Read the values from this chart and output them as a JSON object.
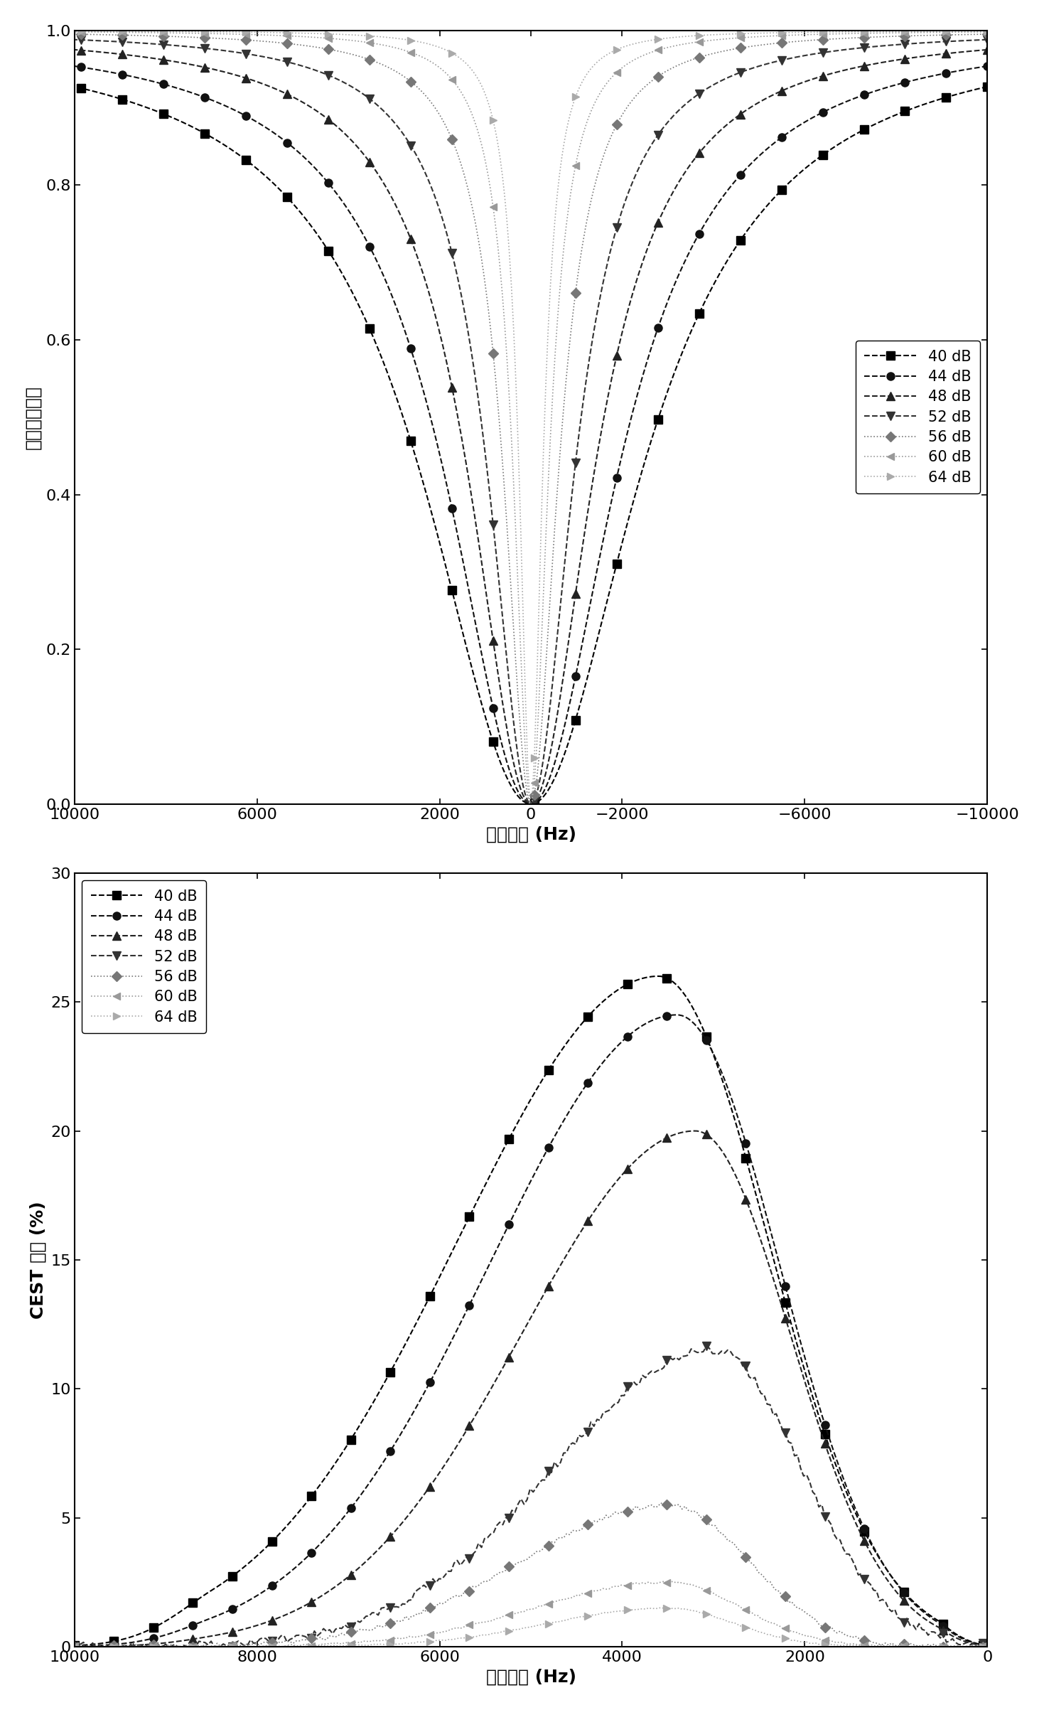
{
  "top_plot": {
    "xlabel": "偏移频率 (Hz)",
    "ylabel": "归一化的强度",
    "xlim_left": 10000,
    "xlim_right": -10000,
    "ylim": [
      0.0,
      1.0
    ],
    "yticks": [
      0.0,
      0.2,
      0.4,
      0.6,
      0.8,
      1.0
    ],
    "xticks": [
      10000,
      6000,
      2000,
      0,
      -2000,
      -6000,
      -10000
    ]
  },
  "bottom_plot": {
    "xlabel": "偏移频率 (Hz)",
    "ylabel": "CEST 效应 (%)",
    "xlim_left": 10000,
    "xlim_right": 0,
    "ylim": [
      0.0,
      30.0
    ],
    "yticks": [
      0,
      5,
      10,
      15,
      20,
      25,
      30
    ],
    "xticks": [
      10000,
      8000,
      6000,
      4000,
      2000,
      0
    ]
  },
  "series": [
    {
      "label": "40 dB",
      "color": "#000000",
      "marker": "s",
      "linestyle": "--",
      "lw": 1.5,
      "ms": 8
    },
    {
      "label": "44 dB",
      "color": "#111111",
      "marker": "o",
      "linestyle": "--",
      "lw": 1.5,
      "ms": 8
    },
    {
      "label": "48 dB",
      "color": "#222222",
      "marker": "^",
      "linestyle": "--",
      "lw": 1.5,
      "ms": 8
    },
    {
      "label": "52 dB",
      "color": "#333333",
      "marker": "v",
      "linestyle": "--",
      "lw": 1.5,
      "ms": 8
    },
    {
      "label": "56 dB",
      "color": "#777777",
      "marker": "D",
      "linestyle": ":",
      "lw": 1.2,
      "ms": 7
    },
    {
      "label": "60 dB",
      "color": "#999999",
      "marker": "<",
      "linestyle": ":",
      "lw": 1.2,
      "ms": 7
    },
    {
      "label": "64 dB",
      "color": "#aaaaaa",
      "marker": ">",
      "linestyle": ":",
      "lw": 1.2,
      "ms": 7
    }
  ],
  "zspec_widths": [
    2800,
    2200,
    1600,
    1100,
    700,
    450,
    300
  ],
  "cest_amps": [
    26.0,
    24.5,
    20.0,
    11.5,
    5.5,
    2.5,
    1.5
  ],
  "cest_peak_hz": [
    3600,
    3400,
    3200,
    3000,
    3500,
    3500,
    3500
  ],
  "background_color": "#ffffff",
  "font_size": 18,
  "tick_label_size": 16,
  "legend_fontsize": 15
}
